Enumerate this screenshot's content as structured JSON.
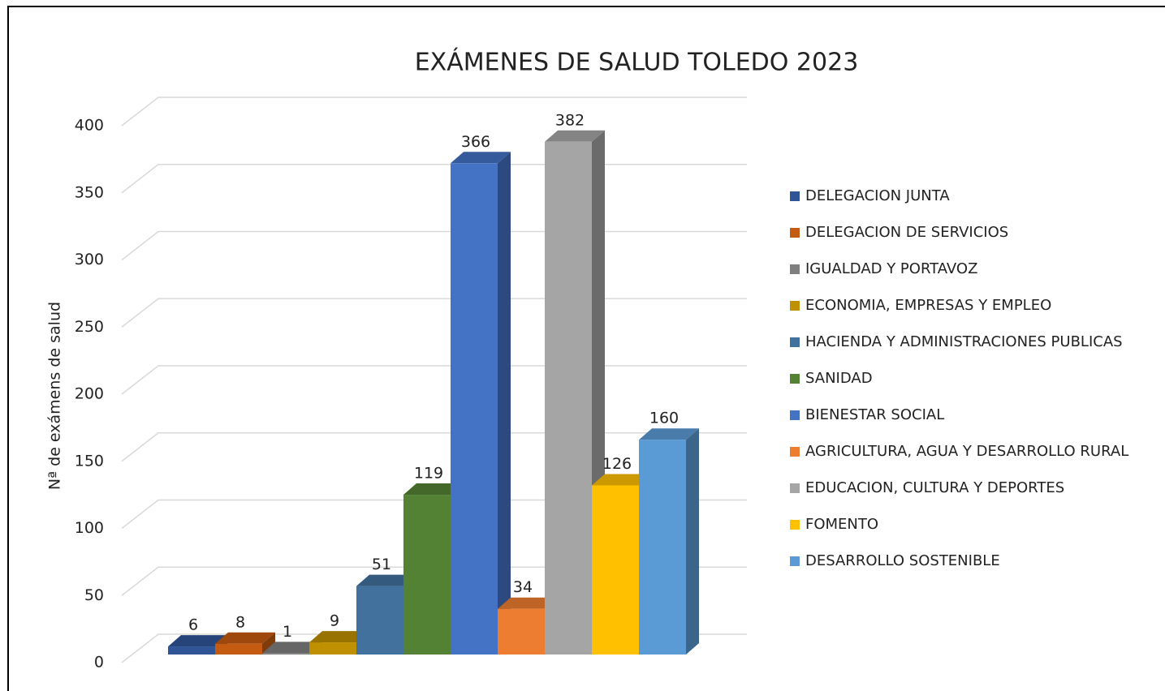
{
  "chart_data": {
    "type": "bar3d",
    "title": "EXÁMENES DE SALUD TOLEDO 2023",
    "y_label": "Nª de exámens de salud",
    "categories": [
      null
    ],
    "series": [
      {
        "name": "DELEGACION JUNTA",
        "color": "#2f5597",
        "values": [
          6
        ]
      },
      {
        "name": "DELEGACION DE SERVICIOS",
        "color": "#c55a11",
        "values": [
          8
        ]
      },
      {
        "name": "IGUALDAD Y PORTAVOZ",
        "color": "#7f7f7f",
        "values": [
          1
        ]
      },
      {
        "name": "ECONOMIA, EMPRESAS Y EMPLEO",
        "color": "#bf9000",
        "values": [
          9
        ]
      },
      {
        "name": "HACIENDA Y ADMINISTRACIONES PUBLICAS",
        "color": "#41719c",
        "values": [
          51
        ]
      },
      {
        "name": "SANIDAD",
        "color": "#548235",
        "values": [
          119
        ]
      },
      {
        "name": "BIENESTAR SOCIAL",
        "color": "#4472c4",
        "values": [
          366
        ]
      },
      {
        "name": "AGRICULTURA, AGUA Y DESARROLLO RURAL",
        "color": "#ed7d31",
        "values": [
          34
        ]
      },
      {
        "name": "EDUCACION, CULTURA Y DEPORTES",
        "color": "#a5a5a5",
        "values": [
          382
        ]
      },
      {
        "name": "FOMENTO",
        "color": "#ffc000",
        "values": [
          126
        ]
      },
      {
        "name": "DESARROLLO SOSTENIBLE",
        "color": "#5b9bd5",
        "values": [
          160
        ]
      }
    ],
    "ylim": [
      0,
      400
    ],
    "yticks": [
      0,
      50,
      100,
      150,
      200,
      250,
      300,
      350,
      400
    ],
    "grid": true,
    "legend": "right"
  }
}
